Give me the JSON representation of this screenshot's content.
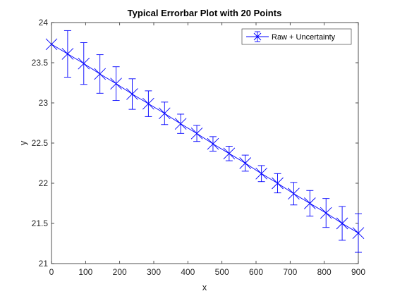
{
  "chart_data": {
    "type": "line",
    "title": "Typical Errorbar Plot with 20 Points",
    "xlabel": "x",
    "ylabel": "y",
    "xlim": [
      0,
      900
    ],
    "ylim": [
      21,
      24
    ],
    "xticks": [
      0,
      100,
      200,
      300,
      400,
      500,
      600,
      700,
      800,
      900
    ],
    "yticks": [
      21,
      21.5,
      22,
      22.5,
      23,
      23.5,
      24
    ],
    "ytick_labels": [
      "21",
      "21.5",
      "22",
      "22.5",
      "23",
      "23.5",
      "24"
    ],
    "grid": false,
    "legend": {
      "placement": "top-right"
    },
    "series": [
      {
        "name": "Raw + Uncertainty",
        "color": "#0000ff",
        "marker": "x",
        "x": [
          0,
          47.4,
          94.7,
          142.1,
          189.5,
          236.8,
          284.2,
          331.6,
          378.9,
          426.3,
          473.7,
          521.1,
          568.4,
          615.8,
          663.2,
          710.5,
          757.9,
          805.3,
          852.6,
          900
        ],
        "y": [
          23.73,
          23.61,
          23.49,
          23.36,
          23.24,
          23.11,
          22.99,
          22.87,
          22.74,
          22.62,
          22.49,
          22.37,
          22.25,
          22.12,
          22.0,
          21.87,
          21.75,
          21.63,
          21.5,
          21.38
        ],
        "err": [
          0,
          0.29,
          0.26,
          0.24,
          0.21,
          0.19,
          0.16,
          0.14,
          0.12,
          0.1,
          0.09,
          0.09,
          0.1,
          0.1,
          0.12,
          0.14,
          0.16,
          0.18,
          0.21,
          0.24
        ]
      }
    ]
  }
}
